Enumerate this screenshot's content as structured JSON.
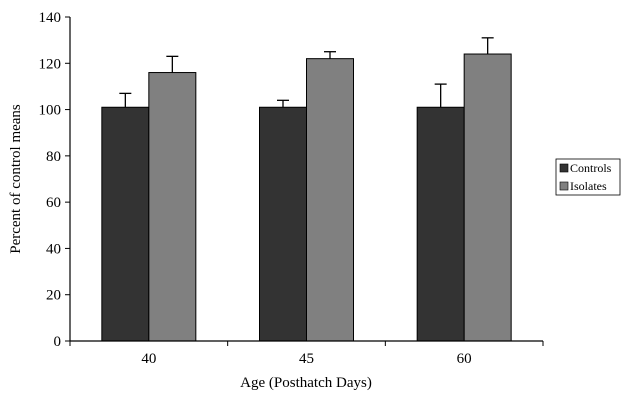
{
  "chart_data": {
    "type": "bar",
    "categories": [
      "40",
      "45",
      "60"
    ],
    "series": [
      {
        "name": "Controls",
        "values": [
          101,
          101,
          101
        ],
        "errors": [
          6,
          3,
          10
        ],
        "color": "#333333"
      },
      {
        "name": "Isolates",
        "values": [
          116,
          122,
          124
        ],
        "errors": [
          7,
          3,
          7
        ],
        "color": "#808080"
      }
    ],
    "title": "",
    "xlabel": "Age (Posthatch Days)",
    "ylabel": "Percent of control means",
    "ylim": [
      0,
      140
    ],
    "yticks": [
      0,
      20,
      40,
      60,
      80,
      100,
      120,
      140
    ],
    "grid": false,
    "legend_position": "right"
  }
}
